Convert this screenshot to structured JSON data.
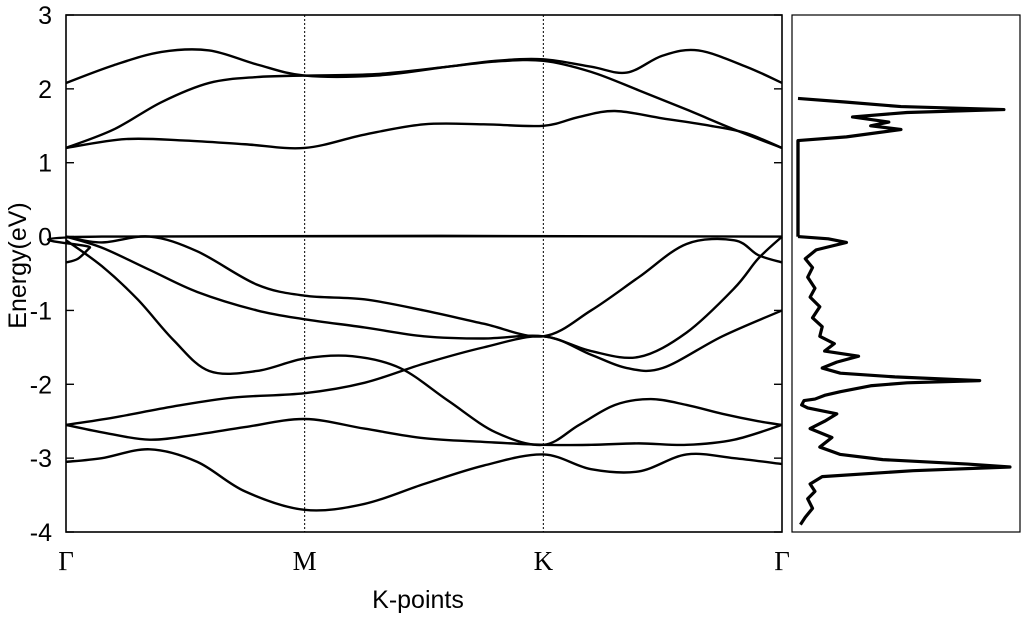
{
  "chart_data": [
    {
      "type": "line",
      "title": "",
      "xlabel": "K-points",
      "ylabel": "Energy(eV)",
      "xlim": [
        0,
        3
      ],
      "ylim": [
        -4,
        3
      ],
      "x_ticks": [
        {
          "label": "Γ",
          "x": 0
        },
        {
          "label": "M",
          "x": 1
        },
        {
          "label": "K",
          "x": 2
        },
        {
          "label": "Γ",
          "x": 3
        }
      ],
      "y_ticks": [
        -4,
        -3,
        -2,
        -1,
        0,
        1,
        2,
        3
      ],
      "fermi_level": 0,
      "grid": "vertical dotted lines at M and K",
      "line_color": "#000000",
      "series": [
        {
          "x": [
            0,
            0.15,
            0.35,
            0.55,
            0.75,
            1.0,
            1.25,
            1.5,
            1.75,
            2.0,
            2.2,
            2.4,
            2.6,
            2.8,
            3.0
          ],
          "y": [
            -3.05,
            -3.0,
            -2.88,
            -3.05,
            -3.45,
            -3.7,
            -3.62,
            -3.35,
            -3.1,
            -2.95,
            -3.15,
            -3.18,
            -2.95,
            -3.0,
            -3.08
          ]
        },
        {
          "x": [
            0,
            0.15,
            0.35,
            0.55,
            0.75,
            1.0,
            1.25,
            1.5,
            1.75,
            2.0,
            2.2,
            2.4,
            2.6,
            2.8,
            3.0
          ],
          "y": [
            -2.55,
            -2.65,
            -2.75,
            -2.68,
            -2.58,
            -2.47,
            -2.6,
            -2.73,
            -2.78,
            -2.82,
            -2.82,
            -2.8,
            -2.82,
            -2.75,
            -2.55
          ]
        },
        {
          "x": [
            0,
            0.2,
            0.45,
            0.7,
            1.0,
            1.25,
            1.5,
            1.75,
            2.0,
            2.2,
            2.35,
            2.5,
            2.75,
            3.0
          ],
          "y": [
            -2.55,
            -2.45,
            -2.3,
            -2.18,
            -2.12,
            -1.98,
            -1.72,
            -1.5,
            -1.35,
            -1.6,
            -1.78,
            -1.78,
            -1.35,
            -1.0
          ]
        },
        {
          "x": [
            0,
            0.15,
            0.3,
            0.45,
            0.6,
            0.8,
            1.0,
            1.2,
            1.4,
            1.6,
            1.8,
            2.0,
            2.15,
            2.3,
            2.45,
            2.6,
            2.75,
            2.9,
            3.0
          ],
          "y": [
            -0.05,
            -0.4,
            -0.85,
            -1.4,
            -1.82,
            -1.82,
            -1.65,
            -1.62,
            -1.78,
            -2.22,
            -2.65,
            -2.82,
            -2.55,
            -2.28,
            -2.2,
            -2.28,
            -2.4,
            -2.5,
            -2.55
          ]
        },
        {
          "x": [
            0,
            0.15,
            0.35,
            0.55,
            0.8,
            1.0,
            1.25,
            1.5,
            1.75,
            2.0,
            2.2,
            2.4,
            2.6,
            2.8,
            2.9,
            3.0
          ],
          "y": [
            0.0,
            -0.15,
            -0.45,
            -0.75,
            -1.0,
            -1.12,
            -1.23,
            -1.35,
            -1.38,
            -1.35,
            -1.55,
            -1.63,
            -1.3,
            -0.7,
            -0.3,
            0.0
          ]
        },
        {
          "x": [
            0,
            0.15,
            0.35,
            0.55,
            0.8,
            1.0,
            1.25,
            1.5,
            1.75,
            2.0,
            2.2,
            2.4,
            2.6,
            2.8,
            2.9,
            3.0
          ],
          "y": [
            0.0,
            -0.08,
            0.0,
            -0.2,
            -0.65,
            -0.8,
            -0.85,
            -1.0,
            -1.18,
            -1.35,
            -1.0,
            -0.55,
            -0.1,
            -0.05,
            -0.25,
            -0.35
          ]
        },
        {
          "x": [
            0,
            0.05,
            0.1,
            0.15,
            3.0
          ],
          "y": [
            -0.35,
            -0.3,
            -0.15,
            0.0,
            0.0
          ]
        },
        {
          "x": [
            0,
            0.25,
            0.5,
            0.75,
            1.0,
            1.25,
            1.5,
            1.75,
            2.0,
            2.15,
            2.3,
            2.5,
            2.7,
            2.85,
            3.0
          ],
          "y": [
            1.2,
            1.32,
            1.3,
            1.25,
            1.2,
            1.38,
            1.52,
            1.52,
            1.5,
            1.62,
            1.7,
            1.6,
            1.5,
            1.4,
            1.2
          ]
        },
        {
          "x": [
            0,
            0.2,
            0.4,
            0.6,
            0.8,
            1.0,
            1.3,
            1.6,
            1.8,
            2.0,
            2.2,
            2.4,
            2.6,
            2.8,
            3.0
          ],
          "y": [
            1.2,
            1.45,
            1.82,
            2.08,
            2.16,
            2.18,
            2.2,
            2.3,
            2.37,
            2.38,
            2.23,
            1.98,
            1.72,
            1.45,
            1.2
          ]
        },
        {
          "x": [
            0,
            0.2,
            0.4,
            0.6,
            0.8,
            1.0,
            1.3,
            1.6,
            1.8,
            2.0,
            2.2,
            2.35,
            2.5,
            2.65,
            2.85,
            3.0
          ],
          "y": [
            2.08,
            2.32,
            2.5,
            2.52,
            2.33,
            2.18,
            2.18,
            2.3,
            2.38,
            2.4,
            2.3,
            2.22,
            2.45,
            2.52,
            2.3,
            2.08
          ]
        }
      ]
    },
    {
      "type": "line",
      "title": "",
      "description_of_axes": "density of states panel sharing the energy axis",
      "ylim": [
        -4,
        3
      ],
      "line_color": "#000000",
      "series": [
        {
          "energy": [
            -3.9,
            -3.8,
            -3.68,
            -3.55,
            -3.45,
            -3.35,
            -3.25,
            -3.17,
            -3.12,
            -3.08,
            -3.02,
            -2.95,
            -2.85,
            -2.72,
            -2.6,
            -2.5,
            -2.4,
            -2.32,
            -2.28,
            -2.22,
            -2.2,
            -2.15,
            -2.1,
            -2.02,
            -1.98,
            -1.95,
            -1.9,
            -1.85,
            -1.78,
            -1.7,
            -1.62,
            -1.55,
            -1.45,
            -1.35,
            -1.22,
            -1.1,
            -0.95,
            -0.82,
            -0.7,
            -0.55,
            -0.42,
            -0.3,
            -0.18,
            -0.08,
            -0.03,
            0.0
          ],
          "dos": [
            2,
            6,
            12,
            8,
            14,
            10,
            20,
            95,
            175,
            140,
            70,
            35,
            18,
            28,
            10,
            22,
            32,
            8,
            3,
            5,
            14,
            22,
            35,
            60,
            90,
            150,
            80,
            35,
            20,
            32,
            50,
            22,
            30,
            18,
            20,
            12,
            18,
            10,
            14,
            8,
            12,
            6,
            15,
            40,
            25,
            0
          ]
        },
        {
          "energy": [
            0.0,
            1.3,
            1.35,
            1.45,
            1.5,
            1.55,
            1.62,
            1.68,
            1.72,
            1.76,
            1.82,
            1.87
          ],
          "dos": [
            0,
            0,
            40,
            85,
            60,
            75,
            45,
            90,
            170,
            85,
            40,
            0
          ]
        }
      ]
    }
  ]
}
